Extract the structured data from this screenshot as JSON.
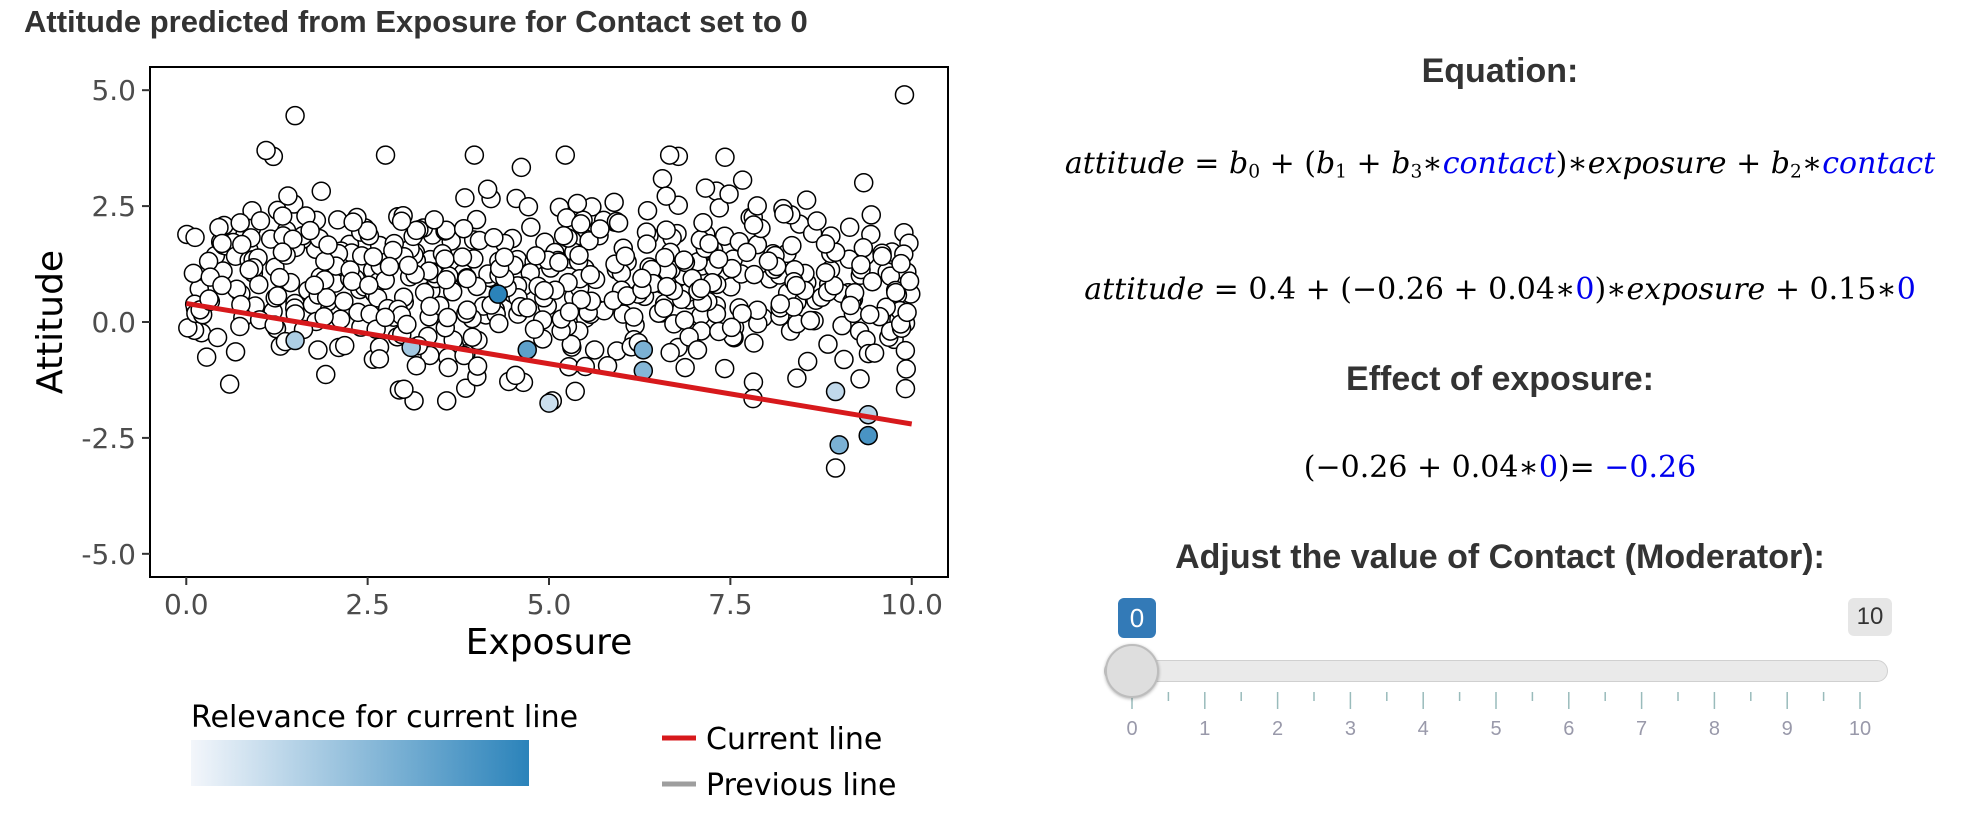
{
  "chart_data": {
    "type": "scatter",
    "title": "Attitude predicted from Exposure for Contact set to 0",
    "xlabel": "Exposure",
    "ylabel": "Attitude",
    "xlim": [
      -0.5,
      10.5
    ],
    "ylim": [
      -5.5,
      5.5
    ],
    "x_ticks": [
      0,
      2.5,
      5,
      7.5,
      10
    ],
    "x_tick_labels": [
      "0.0",
      "2.5",
      "5.0",
      "7.5",
      "10.0"
    ],
    "y_ticks": [
      5,
      2.5,
      0,
      -2.5,
      -5
    ],
    "y_tick_labels": [
      "5.0",
      "2.5",
      "0.0",
      "-2.5",
      "-5.0"
    ],
    "current_line": {
      "intercept": 0.4,
      "slope": -0.26,
      "x_range": [
        0,
        10
      ],
      "color": "#d7191c"
    },
    "highlighted_points": [
      {
        "x": 1.5,
        "y": -0.4,
        "relevance": 0.35
      },
      {
        "x": 3.1,
        "y": -0.55,
        "relevance": 0.4
      },
      {
        "x": 4.3,
        "y": 0.6,
        "relevance": 1.0
      },
      {
        "x": 4.7,
        "y": -0.6,
        "relevance": 0.75
      },
      {
        "x": 5.0,
        "y": -1.75,
        "relevance": 0.2
      },
      {
        "x": 6.3,
        "y": -0.6,
        "relevance": 0.6
      },
      {
        "x": 6.3,
        "y": -1.05,
        "relevance": 0.55
      },
      {
        "x": 9.0,
        "y": -2.65,
        "relevance": 0.6
      },
      {
        "x": 9.4,
        "y": -2.45,
        "relevance": 0.85
      },
      {
        "x": 9.4,
        "y": -2.0,
        "relevance": 0.3
      },
      {
        "x": 8.95,
        "y": -1.5,
        "relevance": 0.25
      }
    ],
    "notable_points": [
      {
        "x": 1.5,
        "y": 4.45
      },
      {
        "x": 9.9,
        "y": 4.9
      },
      {
        "x": 8.95,
        "y": -3.15
      },
      {
        "x": 3.0,
        "y": -1.45
      },
      {
        "x": 1.1,
        "y": 3.7
      }
    ],
    "bulk_point_count": 560,
    "bulk_y_mean": 0.9,
    "bulk_y_sd": 1.05,
    "legend": {
      "relevance_title": "Relevance for current line",
      "gradient_colors": [
        "#f3f6fb",
        "#2b83ba"
      ],
      "current_line_label": "Current line",
      "current_line_color": "#d7191c",
      "previous_line_label": "Previous line",
      "previous_line_color": "#9e9e9e"
    }
  },
  "panel": {
    "equation_heading": "Equation:",
    "effect_heading": "Effect of exposure:",
    "slider_heading": "Adjust the value of Contact (Moderator):",
    "general_equation": {
      "lhs": "attitude",
      "b0": "b",
      "b0_sub": "0",
      "b1": "b",
      "b1_sub": "1",
      "b3": "b",
      "b3_sub": "3",
      "b2": "b",
      "b2_sub": "2",
      "moderator": "contact",
      "focal": "exposure"
    },
    "numeric_equation": {
      "lhs": "attitude",
      "intercept": "0.4",
      "b1": "−0.26",
      "b3": "0.04",
      "contact_value": "0",
      "focal": "exposure",
      "b2": "0.15"
    },
    "effect": {
      "b1": "−0.26",
      "b3": "0.04",
      "contact_value": "0",
      "result": "−0.26"
    }
  },
  "slider": {
    "value": 0,
    "value_label": "0",
    "min": 0,
    "max": 10,
    "max_label": "10",
    "tick_labels": [
      "0",
      "1",
      "2",
      "3",
      "4",
      "5",
      "6",
      "7",
      "8",
      "9",
      "10"
    ],
    "accent_color": "#337ab7"
  }
}
